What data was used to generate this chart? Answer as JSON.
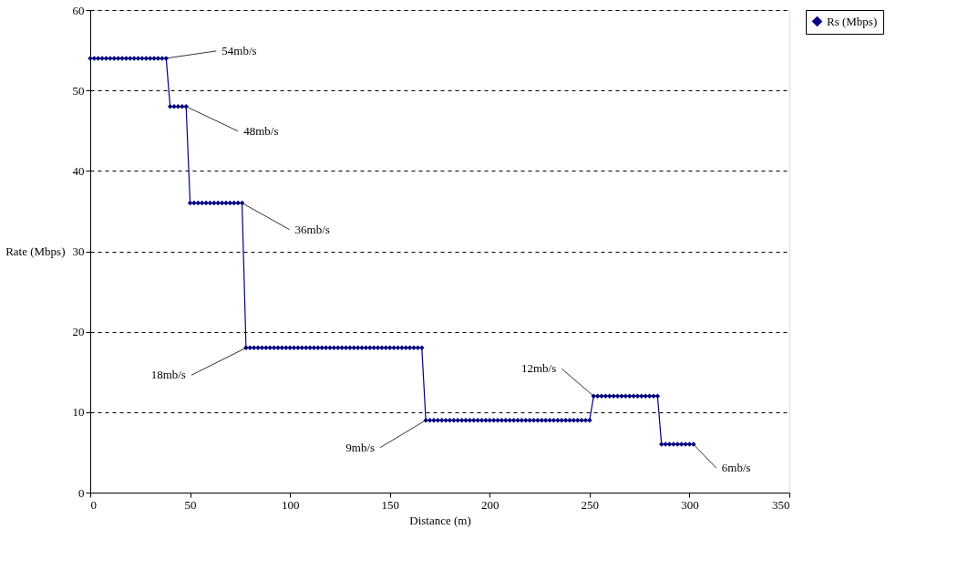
{
  "chart_data": {
    "type": "line",
    "xlabel": "Distance (m)",
    "ylabel": "Rate (Mbps)",
    "xlim": [
      0,
      350
    ],
    "xticks": [
      0,
      50,
      100,
      150,
      200,
      250,
      300,
      350
    ],
    "ylim": [
      0,
      60
    ],
    "yticks": [
      0,
      10,
      20,
      30,
      40,
      50,
      60
    ],
    "grid": "y",
    "legend": "right",
    "marker": "diamond",
    "line_style": "solid",
    "series": [
      {
        "name": "Rs (Mbps)",
        "color": "#000080",
        "x": [
          0,
          2,
          4,
          6,
          8,
          10,
          12,
          14,
          16,
          18,
          20,
          22,
          24,
          26,
          28,
          30,
          32,
          34,
          36,
          38,
          40,
          42,
          44,
          46,
          48,
          50,
          52,
          54,
          56,
          58,
          60,
          62,
          64,
          66,
          68,
          70,
          72,
          74,
          76,
          78,
          80,
          82,
          84,
          86,
          88,
          90,
          92,
          94,
          96,
          98,
          100,
          102,
          104,
          106,
          108,
          110,
          112,
          114,
          116,
          118,
          120,
          122,
          124,
          126,
          128,
          130,
          132,
          134,
          136,
          138,
          140,
          142,
          144,
          146,
          148,
          150,
          152,
          154,
          156,
          158,
          160,
          162,
          164,
          166,
          168,
          170,
          172,
          174,
          176,
          178,
          180,
          182,
          184,
          186,
          188,
          190,
          192,
          194,
          196,
          198,
          200,
          202,
          204,
          206,
          208,
          210,
          212,
          214,
          216,
          218,
          220,
          222,
          224,
          226,
          228,
          230,
          232,
          234,
          236,
          238,
          240,
          242,
          244,
          246,
          248,
          250,
          252,
          254,
          256,
          258,
          260,
          262,
          264,
          266,
          268,
          270,
          272,
          274,
          276,
          278,
          280,
          282,
          284,
          286,
          288,
          290,
          292,
          294,
          296,
          298,
          300,
          302
        ],
        "values": [
          54,
          54,
          54,
          54,
          54,
          54,
          54,
          54,
          54,
          54,
          54,
          54,
          54,
          54,
          54,
          54,
          54,
          54,
          54,
          54,
          48,
          48,
          48,
          48,
          48,
          36,
          36,
          36,
          36,
          36,
          36,
          36,
          36,
          36,
          36,
          36,
          36,
          36,
          36,
          18,
          18,
          18,
          18,
          18,
          18,
          18,
          18,
          18,
          18,
          18,
          18,
          18,
          18,
          18,
          18,
          18,
          18,
          18,
          18,
          18,
          18,
          18,
          18,
          18,
          18,
          18,
          18,
          18,
          18,
          18,
          18,
          18,
          18,
          18,
          18,
          18,
          18,
          18,
          18,
          18,
          18,
          18,
          18,
          18,
          9,
          9,
          9,
          9,
          9,
          9,
          9,
          9,
          9,
          9,
          9,
          9,
          9,
          9,
          9,
          9,
          9,
          9,
          9,
          9,
          9,
          9,
          9,
          9,
          9,
          9,
          9,
          9,
          9,
          9,
          9,
          9,
          9,
          9,
          9,
          9,
          9,
          9,
          9,
          9,
          9,
          9,
          12,
          12,
          12,
          12,
          12,
          12,
          12,
          12,
          12,
          12,
          12,
          12,
          12,
          12,
          12,
          12,
          12,
          6,
          6,
          6,
          6,
          6,
          6,
          6,
          6,
          6
        ]
      }
    ],
    "annotations": [
      {
        "text": "54mb/s",
        "x": 38,
        "y": 54
      },
      {
        "text": "48mb/s",
        "x": 48,
        "y": 48
      },
      {
        "text": "36mb/s",
        "x": 76,
        "y": 36
      },
      {
        "text": "18mb/s",
        "x": 78,
        "y": 18
      },
      {
        "text": "9mb/s",
        "x": 168,
        "y": 9
      },
      {
        "text": "12mb/s",
        "x": 252,
        "y": 12
      },
      {
        "text": "6mb/s",
        "x": 302,
        "y": 6
      }
    ]
  }
}
